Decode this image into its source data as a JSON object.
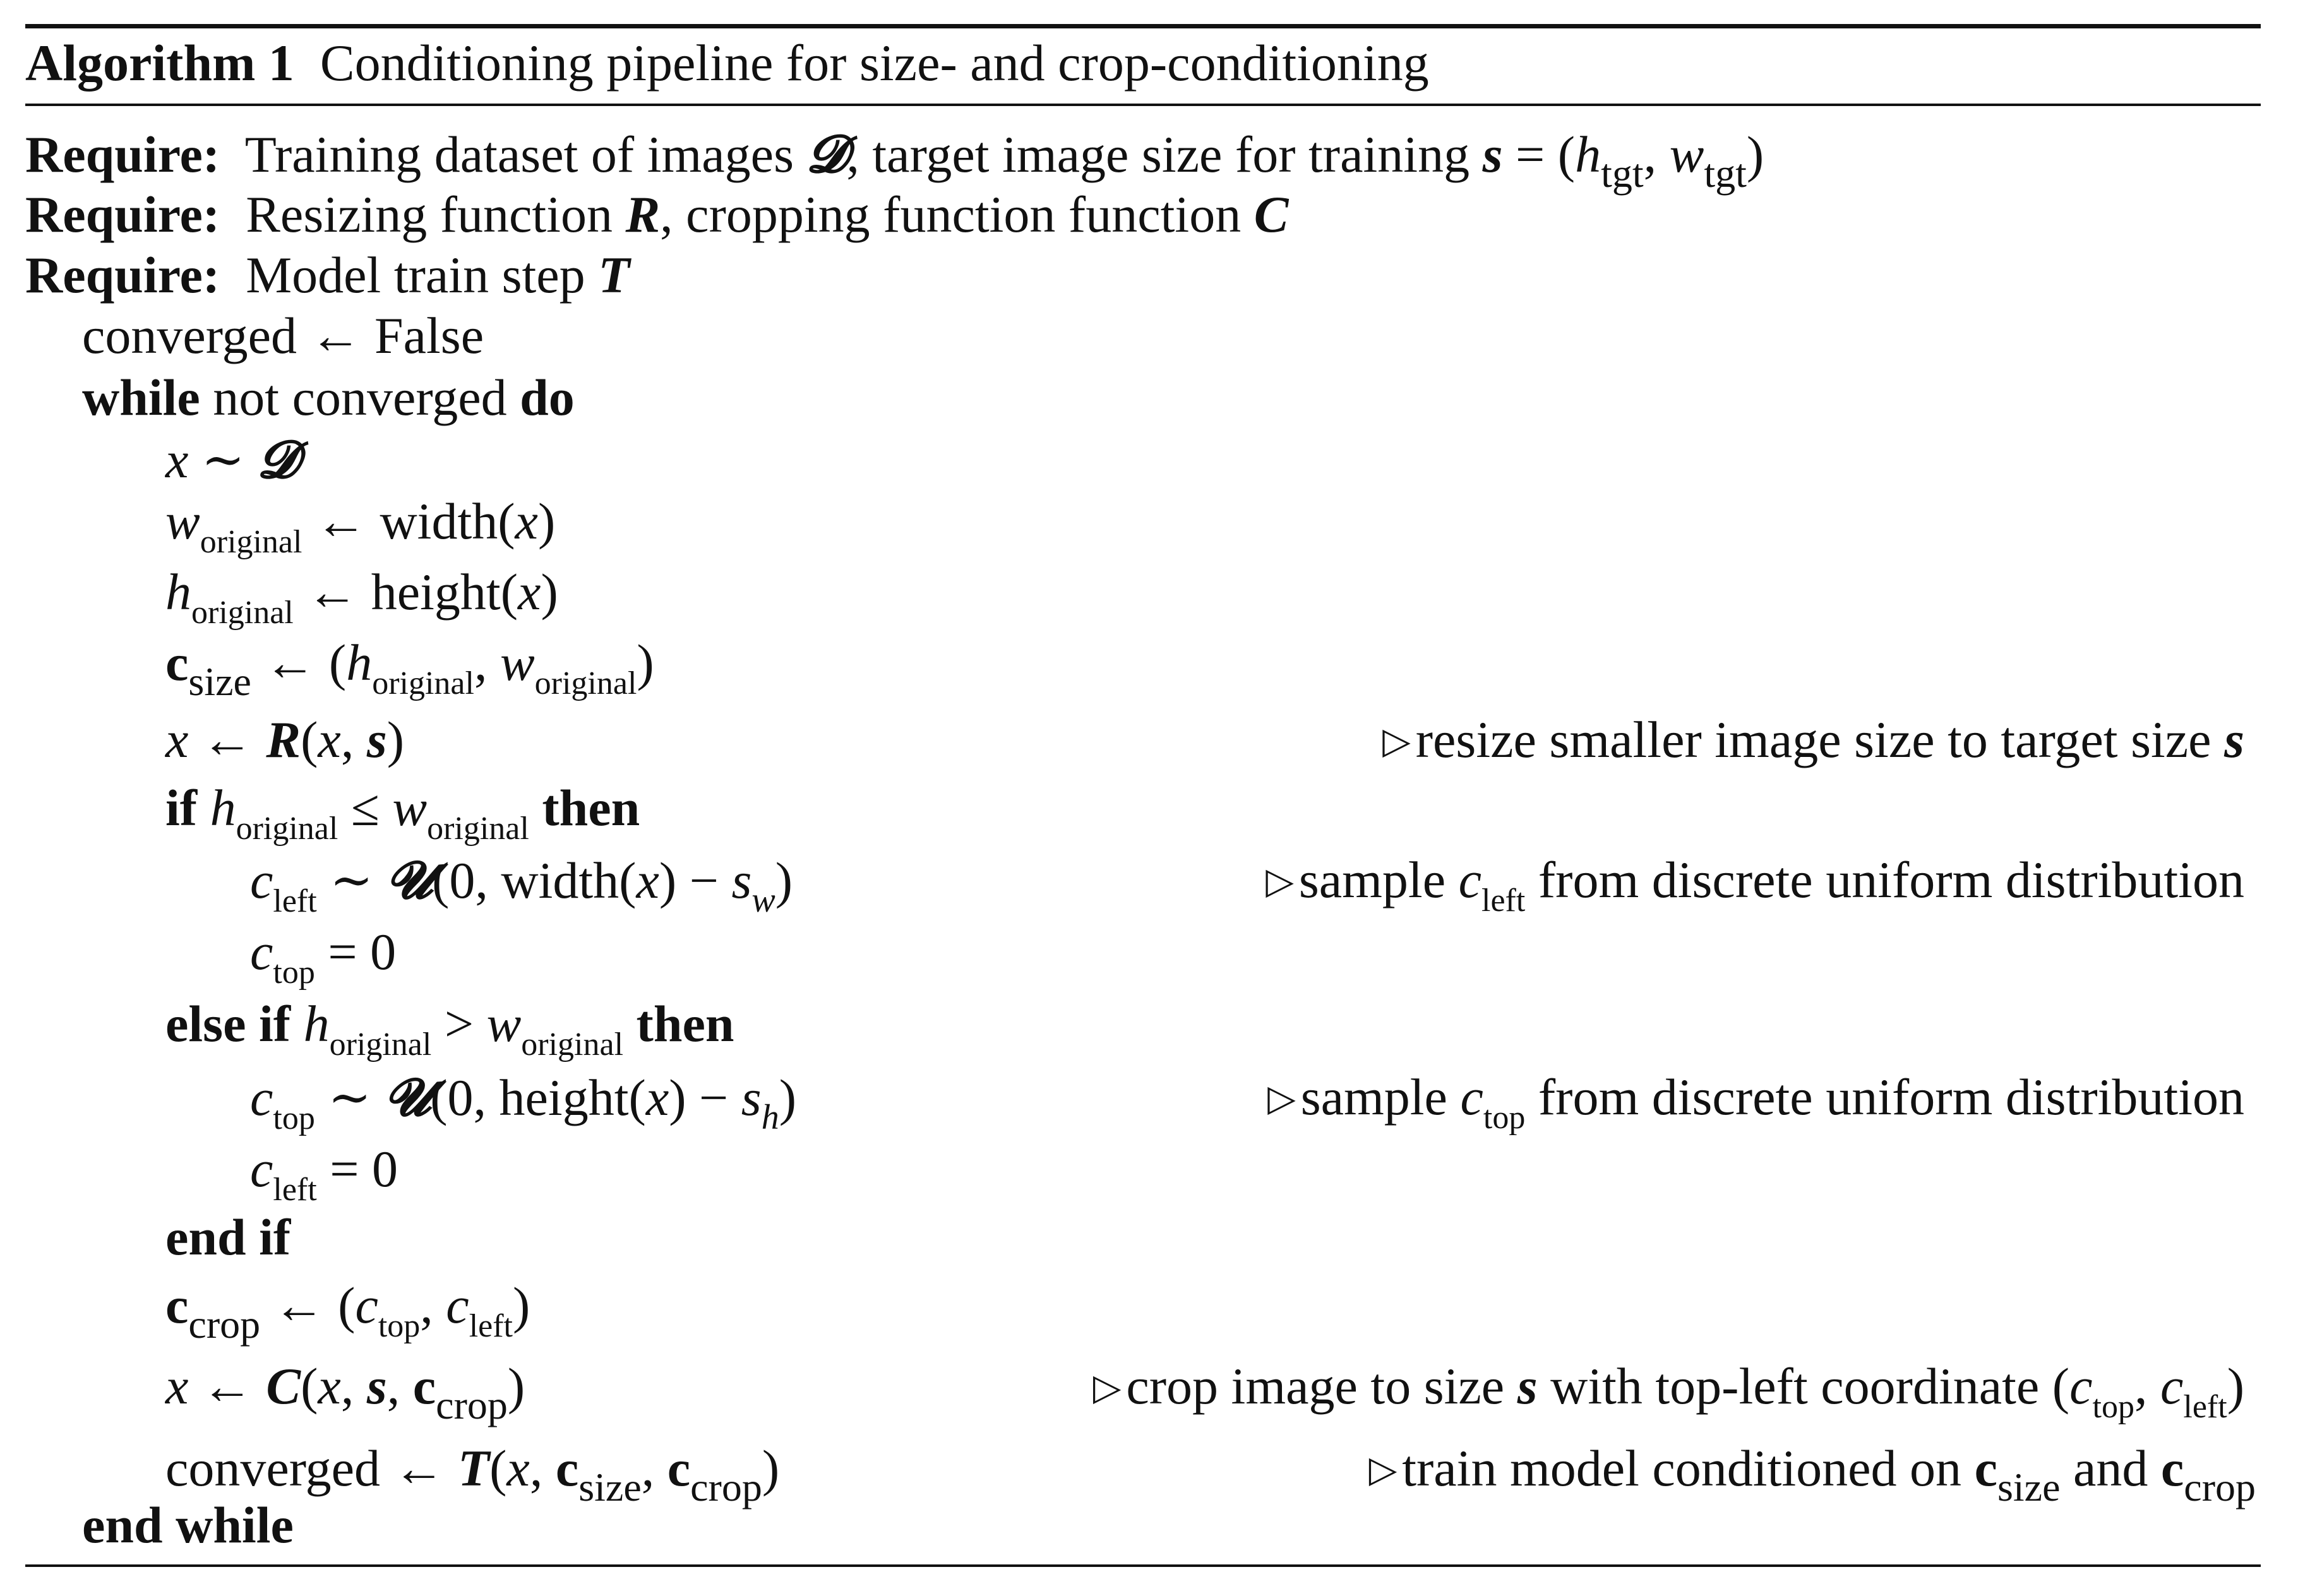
{
  "algorithm": {
    "number_label": "Algorithm 1",
    "title": "Conditioning pipeline for size- and crop-conditioning"
  },
  "keywords": {
    "require": "Require:",
    "while": "while",
    "do": "do",
    "if": "if",
    "then": "then",
    "else_if": "else if",
    "end_if": "end if",
    "end_while": "end while"
  },
  "requires": {
    "r1_text": "Training dataset of images ",
    "r1_dataset": "𝓓",
    "r1_text2": ", target image size for training ",
    "r1_s": "s",
    "r1_eq": " = (",
    "r1_h": "h",
    "r1_hsub": "tgt",
    "r1_comma": ", ",
    "r1_w": "w",
    "r1_wsub": "tgt",
    "r1_close": ")",
    "r2_text": "Resizing function ",
    "r2_R": "R",
    "r2_text2": ", cropping function function ",
    "r2_C": "C",
    "r3_text": "Model train step ",
    "r3_T": "T"
  },
  "body": {
    "l1": "converged ← False",
    "l2_mid": " not converged ",
    "l3_x": "x",
    "l3_sim": " ∼ ",
    "l3_D": "𝓓",
    "orig": "original",
    "l4_w": "w",
    "l4_rhs": " ← width(",
    "l4_x": "x",
    "l4_close": ")",
    "l5_h": "h",
    "l5_rhs": " ← height(",
    "l5_x": "x",
    "l5_close": ")",
    "l6_c": "c",
    "l6_sub": "size",
    "l6_rhs": " ← (",
    "l6_h": "h",
    "l6_comma": ", ",
    "l6_w": "w",
    "l6_close": ")",
    "l7_x": "x",
    "l7_arrow": " ← ",
    "l7_R": "R",
    "l7_open": "(",
    "l7_x2": "x",
    "l7_comma": ", ",
    "l7_s": "s",
    "l7_close": ")",
    "l7_comment": "resize smaller image size to target size ",
    "l7_comment_s": "s",
    "l8_h": "h",
    "l8_le": " ≤ ",
    "l8_w": "w",
    "l9_c": "c",
    "l9_sub": "left",
    "l9_sim": " ∼ ",
    "l9_U": "𝓤",
    "l9_args": "(0, width(",
    "l9_x": "x",
    "l9_minus": ") − ",
    "l9_s": "s",
    "l9_ssub": "w",
    "l9_close": ")",
    "l9_comment_a": "sample ",
    "l9_comment_c": "c",
    "l9_comment_sub": "left",
    "l9_comment_b": " from discrete uniform distribution",
    "l10_c": "c",
    "l10_sub": "top",
    "l10_rhs": " = 0",
    "l11_h": "h",
    "l11_gt": " > ",
    "l11_w": "w",
    "l12_c": "c",
    "l12_sub": "top",
    "l12_sim": " ∼ ",
    "l12_U": "𝓤",
    "l12_args": "(0, height(",
    "l12_x": "x",
    "l12_minus": ") − ",
    "l12_s": "s",
    "l12_ssub": "h",
    "l12_close": ")",
    "l12_comment_a": "sample ",
    "l12_comment_c": "c",
    "l12_comment_sub": "top",
    "l12_comment_b": " from discrete uniform distribution",
    "l13_c": "c",
    "l13_sub": "left",
    "l13_rhs": " = 0",
    "l15_c": "c",
    "l15_sub": "crop",
    "l15_rhs": " ← (",
    "l15_c1": "c",
    "l15_c1sub": "top",
    "l15_comma": ", ",
    "l15_c2": "c",
    "l15_c2sub": "left",
    "l15_close": ")",
    "l16_x": "x",
    "l16_arrow": " ← ",
    "l16_C": "C",
    "l16_open": "(",
    "l16_x2": "x",
    "l16_comma": ", ",
    "l16_s": "s",
    "l16_comma2": ", ",
    "l16_c": "c",
    "l16_csub": "crop",
    "l16_close": ")",
    "l16_comment_a": "crop image to size ",
    "l16_comment_s": "s",
    "l16_comment_b": " with top-left coordinate (",
    "l16_comment_c1": "c",
    "l16_comment_c1sub": "top",
    "l16_comment_comma": ", ",
    "l16_comment_c2": "c",
    "l16_comment_c2sub": "left",
    "l16_comment_close": ")",
    "l17_lhs": "converged ← ",
    "l17_T": "T",
    "l17_open": "(",
    "l17_x": "x",
    "l17_comma": ", ",
    "l17_c1": "c",
    "l17_c1sub": "size",
    "l17_comma2": ", ",
    "l17_c2": "c",
    "l17_c2sub": "crop",
    "l17_close": ")",
    "l17_comment_a": "train model conditioned on ",
    "l17_comment_c1": "c",
    "l17_comment_c1sub": "size",
    "l17_comment_and": " and ",
    "l17_comment_c2": "c",
    "l17_comment_c2sub": "crop"
  },
  "comment_marker": "▷"
}
